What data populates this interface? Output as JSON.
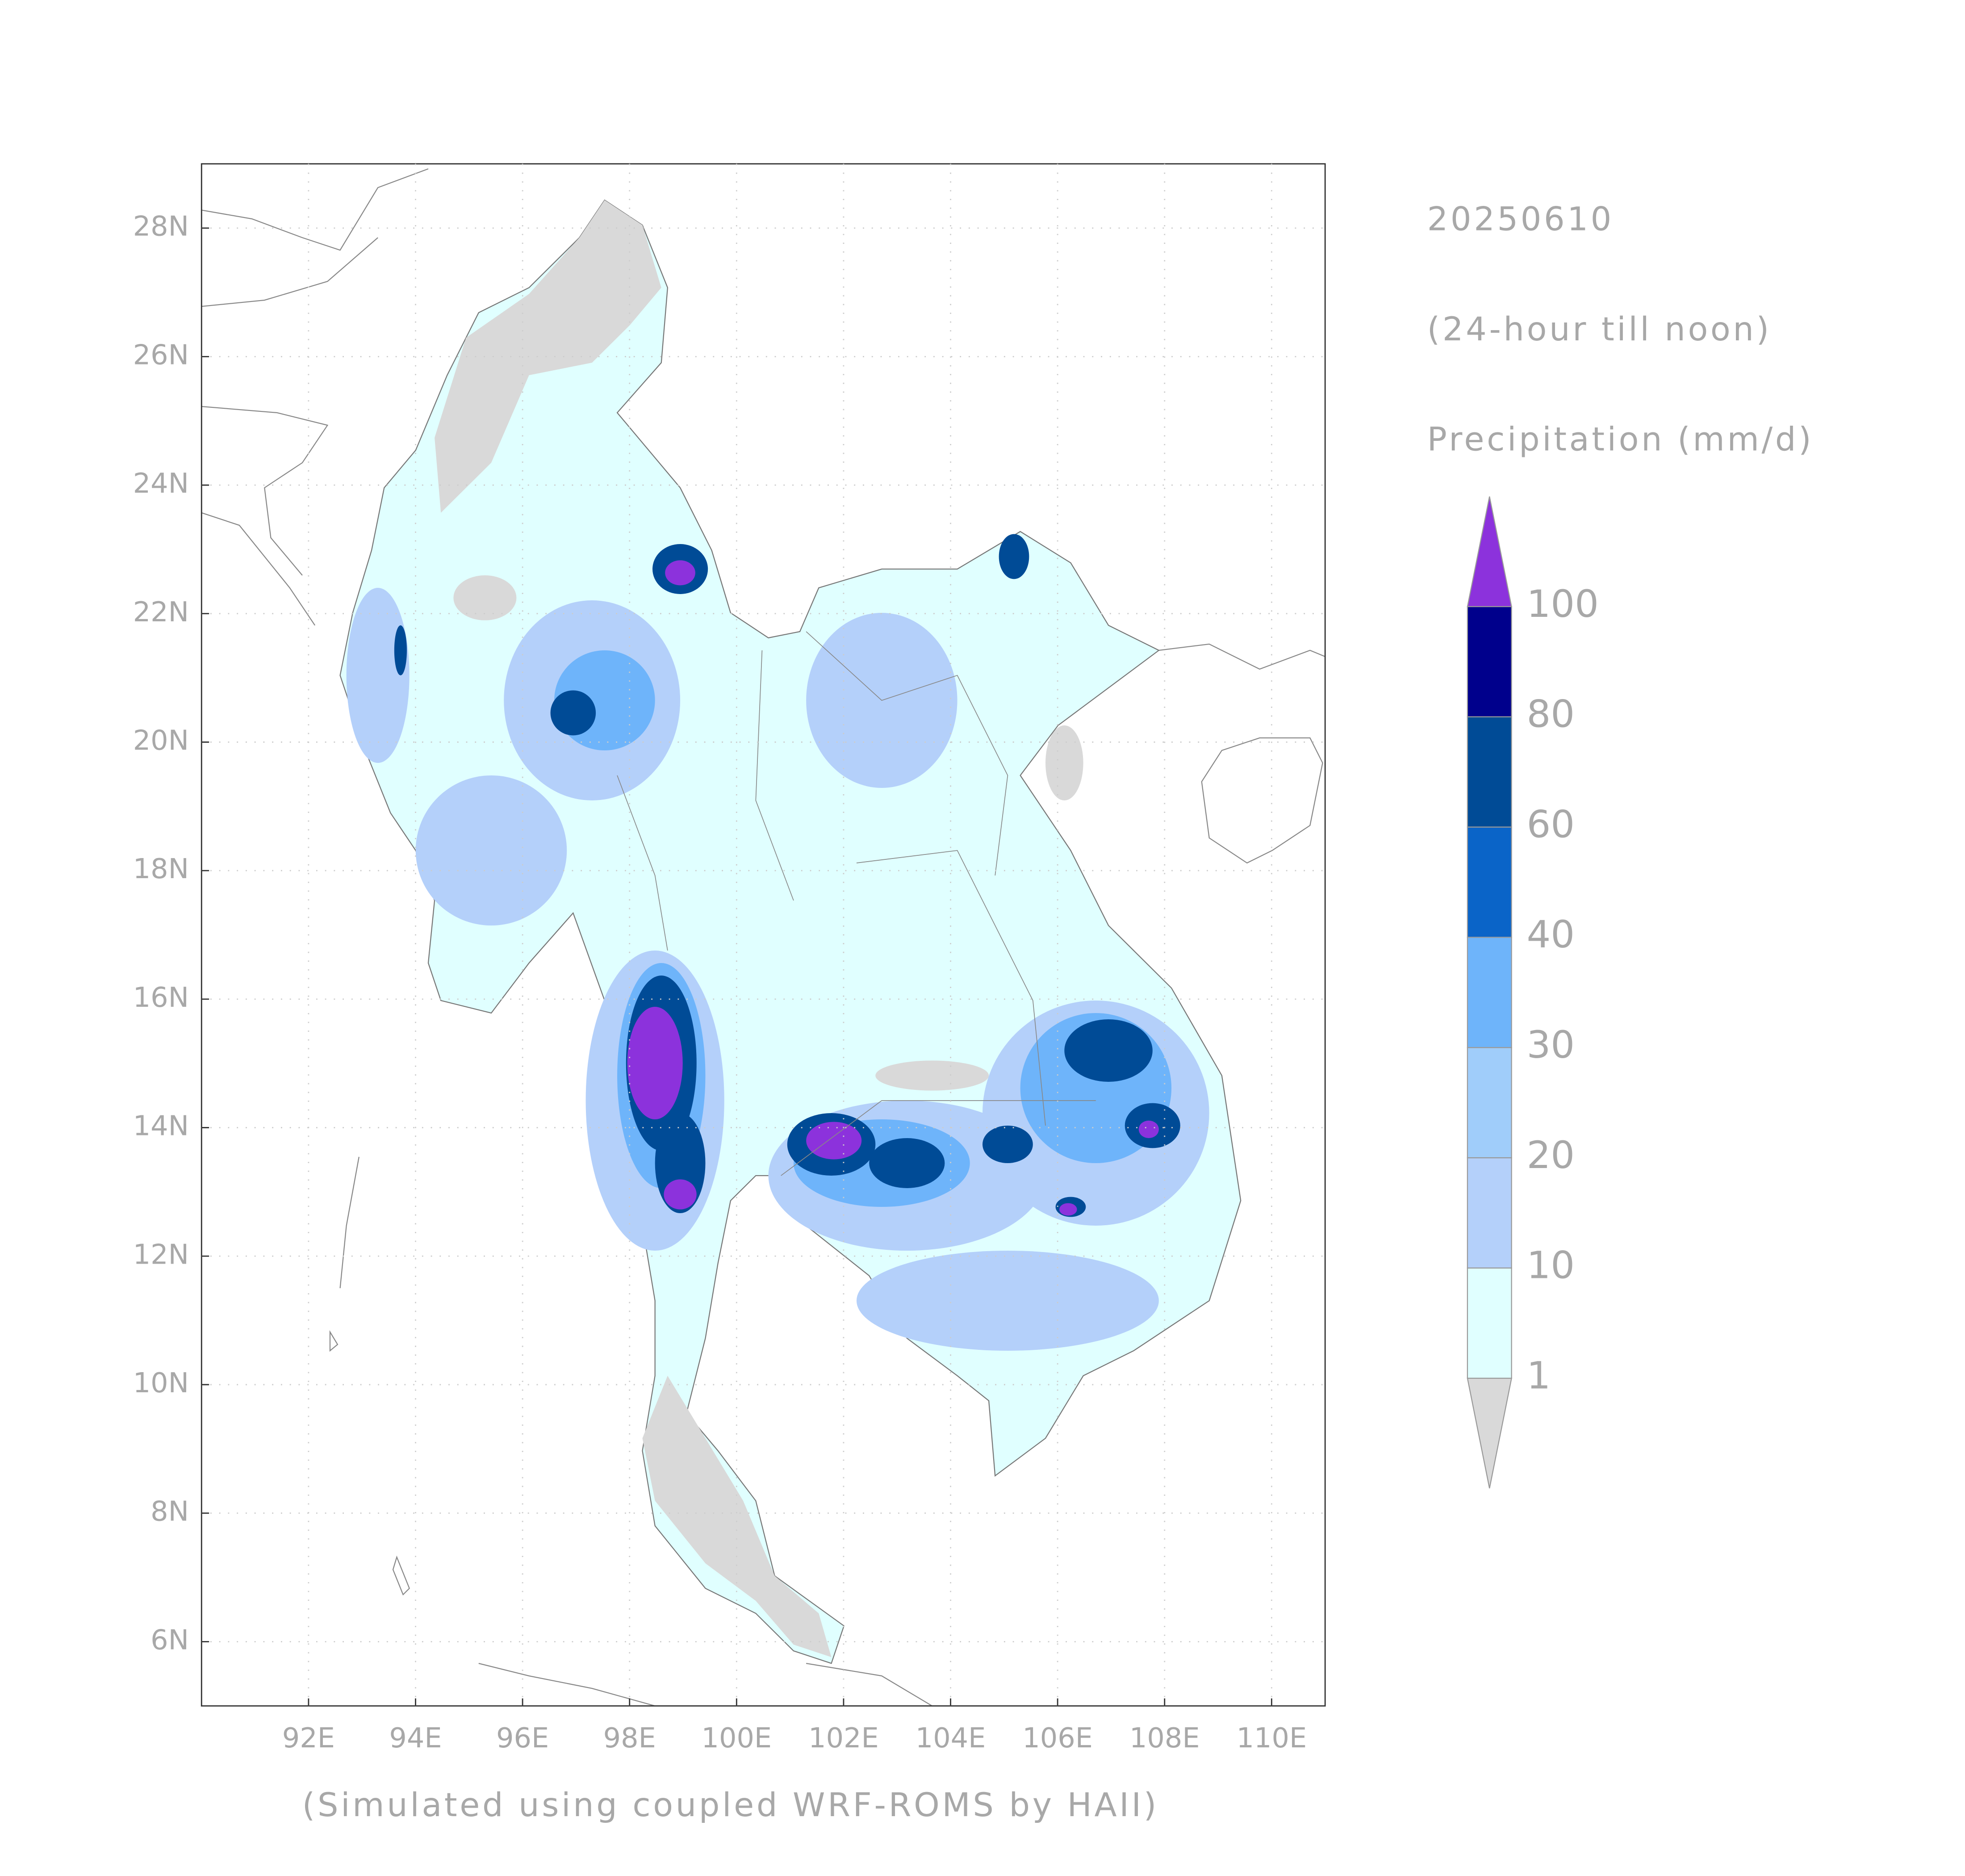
{
  "chart_data": {
    "type": "map",
    "title": "20250610",
    "subtitle": "(24-hour till noon)",
    "variable": "Precipitation (mm/d)",
    "footer": "(Simulated using coupled WRF-ROMS by HAII)",
    "xlim": [
      90,
      111
    ],
    "ylim": [
      5,
      29
    ],
    "xticks": [
      {
        "value": 92,
        "label": "92E"
      },
      {
        "value": 94,
        "label": "94E"
      },
      {
        "value": 96,
        "label": "96E"
      },
      {
        "value": 98,
        "label": "98E"
      },
      {
        "value": 100,
        "label": "100E"
      },
      {
        "value": 102,
        "label": "102E"
      },
      {
        "value": 104,
        "label": "104E"
      },
      {
        "value": 106,
        "label": "106E"
      },
      {
        "value": 108,
        "label": "108E"
      },
      {
        "value": 110,
        "label": "110E"
      }
    ],
    "yticks": [
      {
        "value": 6,
        "label": "6N"
      },
      {
        "value": 8,
        "label": "8N"
      },
      {
        "value": 10,
        "label": "10N"
      },
      {
        "value": 12,
        "label": "12N"
      },
      {
        "value": 14,
        "label": "14N"
      },
      {
        "value": 16,
        "label": "16N"
      },
      {
        "value": 18,
        "label": "18N"
      },
      {
        "value": 20,
        "label": "20N"
      },
      {
        "value": 22,
        "label": "22N"
      },
      {
        "value": 24,
        "label": "24N"
      },
      {
        "value": 26,
        "label": "26N"
      },
      {
        "value": 28,
        "label": "28N"
      }
    ],
    "grid": true,
    "colorbar": {
      "levels": [
        1,
        10,
        20,
        30,
        40,
        60,
        80,
        100
      ],
      "colors": [
        "#d9d9d9",
        "#e0ffff",
        "#b4d0fa",
        "#a0cdfa",
        "#6eb4fa",
        "#0a64c8",
        "#004b96",
        "#00008c",
        "#8c32dc"
      ]
    }
  }
}
